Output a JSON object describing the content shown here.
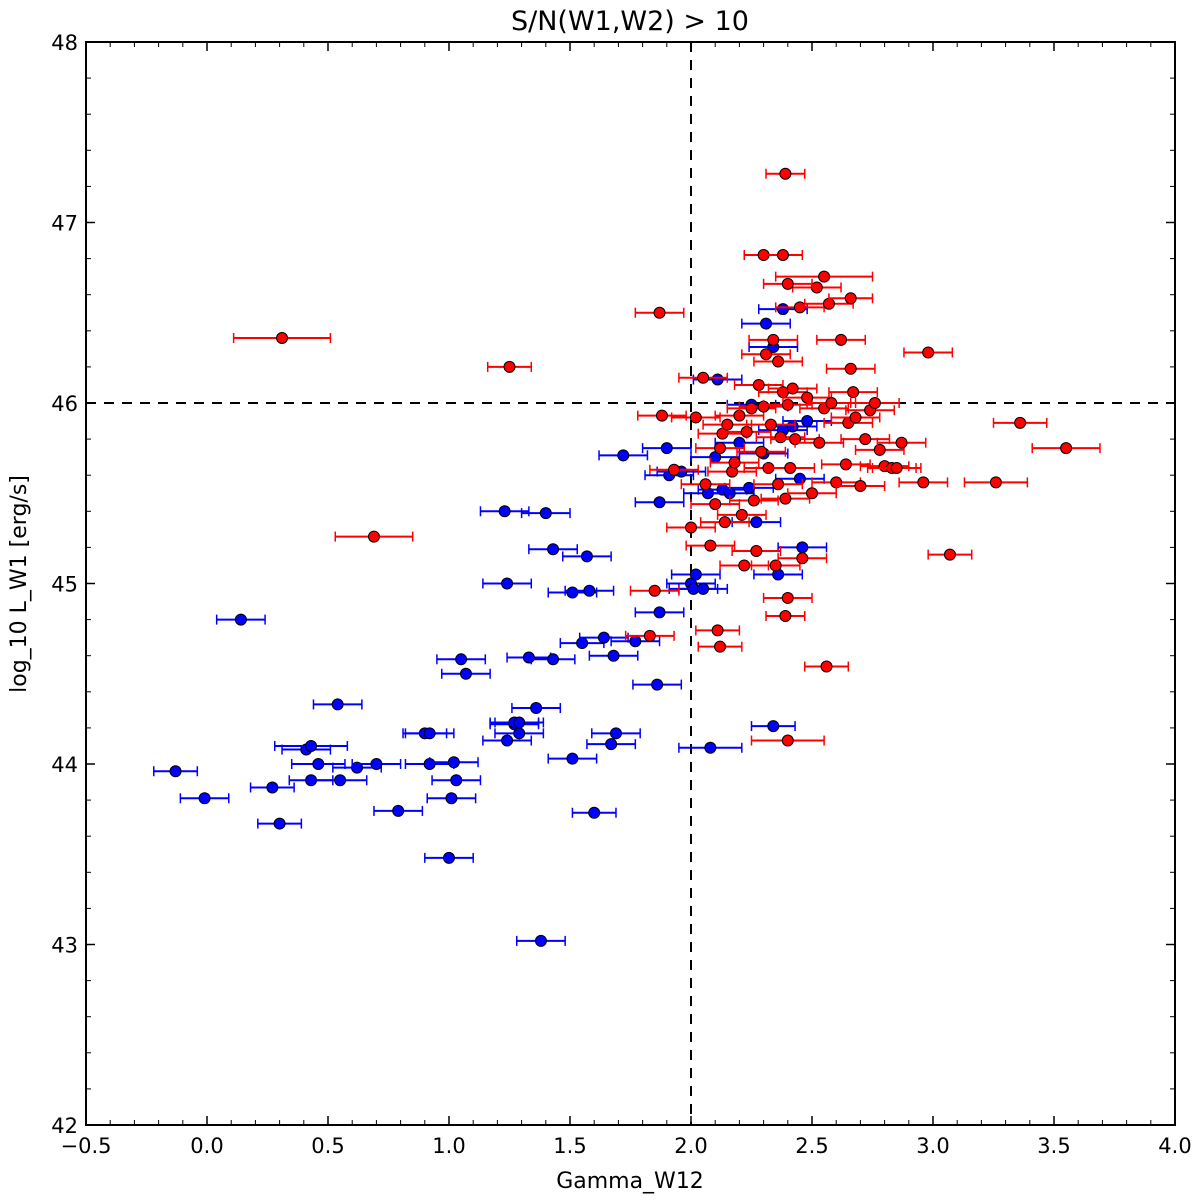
{
  "chart_data": {
    "type": "scatter",
    "title": "S/N(W1,W2) > 10",
    "xlabel": "Gamma_W12",
    "ylabel": "log_10 L_W1 [erg/s]",
    "xlim": [
      -0.5,
      4.0
    ],
    "ylim": [
      42,
      48
    ],
    "x_ticks": [
      -0.5,
      0.0,
      0.5,
      1.0,
      1.5,
      2.0,
      2.5,
      3.0,
      3.5,
      4.0
    ],
    "x_tick_labels": [
      "−0.5",
      "0.0",
      "0.5",
      "1.0",
      "1.5",
      "2.0",
      "2.5",
      "3.0",
      "3.5",
      "4.0"
    ],
    "y_ticks": [
      42,
      43,
      44,
      45,
      46,
      47,
      48
    ],
    "y_tick_labels": [
      "42",
      "43",
      "44",
      "45",
      "46",
      "47",
      "48"
    ],
    "grid": false,
    "reference_lines": [
      {
        "orientation": "vertical",
        "value": 2.0,
        "style": "dashed"
      },
      {
        "orientation": "horizontal",
        "value": 46.0,
        "style": "dashed"
      }
    ],
    "series": [
      {
        "color": "#0000ff",
        "marker_color": "#0000ff",
        "x": [
          -0.13,
          -0.01,
          0.14,
          0.27,
          0.3,
          0.41,
          0.43,
          0.43,
          0.46,
          0.54,
          0.55,
          0.62,
          0.7,
          0.79,
          0.9,
          0.92,
          0.92,
          1.0,
          1.01,
          1.02,
          1.03,
          1.05,
          1.07,
          1.23,
          1.24,
          1.24,
          1.27,
          1.27,
          1.29,
          1.29,
          1.33,
          1.36,
          1.38,
          1.4,
          1.43,
          1.43,
          1.51,
          1.51,
          1.55,
          1.57,
          1.58,
          1.6,
          1.64,
          1.67,
          1.68,
          1.69,
          1.72,
          1.77,
          1.86,
          1.87,
          1.87,
          1.9,
          1.91,
          1.96,
          2.0,
          2.01,
          2.02,
          2.05,
          2.07,
          2.08,
          2.1,
          2.11,
          2.13,
          2.16,
          2.2,
          2.24,
          2.25,
          2.27,
          2.3,
          2.31,
          2.34,
          2.34,
          2.36,
          2.38,
          2.38,
          2.42,
          2.45,
          2.46,
          2.48
        ],
        "y": [
          43.96,
          43.81,
          44.8,
          43.87,
          43.67,
          44.08,
          43.91,
          44.1,
          44.0,
          44.33,
          43.91,
          43.98,
          44.0,
          43.74,
          44.17,
          44.17,
          44.0,
          43.48,
          43.81,
          44.01,
          43.91,
          44.58,
          44.5,
          45.4,
          45.0,
          44.13,
          44.22,
          44.23,
          44.17,
          44.23,
          44.59,
          44.31,
          43.02,
          45.39,
          45.19,
          44.58,
          44.03,
          44.95,
          44.67,
          45.15,
          44.96,
          43.73,
          44.7,
          44.11,
          44.6,
          44.17,
          45.71,
          44.68,
          44.44,
          44.84,
          45.45,
          45.75,
          45.6,
          45.62,
          45.0,
          44.97,
          45.05,
          44.97,
          45.5,
          44.09,
          45.7,
          46.13,
          45.52,
          45.5,
          45.78,
          45.53,
          45.99,
          45.34,
          45.72,
          46.44,
          46.31,
          44.21,
          45.05,
          46.52,
          45.85,
          45.87,
          45.58,
          45.2,
          45.9
        ],
        "xerr": [
          0.09,
          0.1,
          0.1,
          0.09,
          0.09,
          0.1,
          0.09,
          0.15,
          0.11,
          0.1,
          0.11,
          0.1,
          0.1,
          0.1,
          0.09,
          0.1,
          0.1,
          0.1,
          0.1,
          0.1,
          0.1,
          0.1,
          0.1,
          0.1,
          0.1,
          0.1,
          0.1,
          0.1,
          0.1,
          0.1,
          0.09,
          0.1,
          0.1,
          0.1,
          0.1,
          0.09,
          0.1,
          0.1,
          0.09,
          0.1,
          0.1,
          0.09,
          0.1,
          0.1,
          0.1,
          0.1,
          0.1,
          0.1,
          0.1,
          0.1,
          0.1,
          0.1,
          0.1,
          0.1,
          0.1,
          0.1,
          0.1,
          0.1,
          0.1,
          0.13,
          0.1,
          0.1,
          0.1,
          0.1,
          0.1,
          0.1,
          0.1,
          0.1,
          0.1,
          0.1,
          0.1,
          0.09,
          0.1,
          0.1,
          0.1,
          0.1,
          0.1,
          0.1,
          0.1
        ]
      },
      {
        "color": "#ff0000",
        "marker_color": "#ff0000",
        "x": [
          0.31,
          0.69,
          1.25,
          1.83,
          1.85,
          1.87,
          1.88,
          1.93,
          2.0,
          2.02,
          2.05,
          2.06,
          2.08,
          2.1,
          2.12,
          2.13,
          2.14,
          2.15,
          2.17,
          2.18,
          2.2,
          2.21,
          2.22,
          2.23,
          2.25,
          2.26,
          2.27,
          2.28,
          2.29,
          2.3,
          2.31,
          2.32,
          2.33,
          2.34,
          2.35,
          2.36,
          2.36,
          2.37,
          2.38,
          2.39,
          2.4,
          2.4,
          2.41,
          2.42,
          2.43,
          2.45,
          2.46,
          2.48,
          2.5,
          2.52,
          2.53,
          2.55,
          2.57,
          2.58,
          2.6,
          2.62,
          2.64,
          2.65,
          2.66,
          2.67,
          2.68,
          2.7,
          2.72,
          2.74,
          2.76,
          2.78,
          2.8,
          2.83,
          2.85,
          2.87,
          2.96,
          2.98,
          3.07,
          3.26,
          3.36,
          3.55,
          2.39,
          2.3,
          2.38,
          2.55,
          2.66,
          2.4,
          2.56,
          2.11,
          2.12,
          2.39,
          2.4
        ],
        "y": [
          46.36,
          45.26,
          46.2,
          44.71,
          44.96,
          46.5,
          45.93,
          45.63,
          45.31,
          45.92,
          46.14,
          45.55,
          45.21,
          45.44,
          45.75,
          45.83,
          45.34,
          45.88,
          45.62,
          45.67,
          45.93,
          45.38,
          45.1,
          45.84,
          45.97,
          45.46,
          45.18,
          46.1,
          45.73,
          45.98,
          46.27,
          45.64,
          45.88,
          46.35,
          45.1,
          45.55,
          46.23,
          45.81,
          46.06,
          45.47,
          45.99,
          44.92,
          45.64,
          46.08,
          45.8,
          46.53,
          45.14,
          46.03,
          45.5,
          46.64,
          45.78,
          45.97,
          46.55,
          46.0,
          45.56,
          46.35,
          45.66,
          45.89,
          46.19,
          46.06,
          45.92,
          45.54,
          45.8,
          45.96,
          46.0,
          45.74,
          45.65,
          45.64,
          45.64,
          45.78,
          45.56,
          46.28,
          45.16,
          45.56,
          45.89,
          45.75,
          47.27,
          46.82,
          46.82,
          46.7,
          46.58,
          46.66,
          44.54,
          44.74,
          44.65,
          44.82,
          44.13
        ],
        "xerr": [
          0.2,
          0.16,
          0.09,
          0.1,
          0.1,
          0.1,
          0.1,
          0.1,
          0.1,
          0.1,
          0.1,
          0.1,
          0.1,
          0.1,
          0.1,
          0.1,
          0.1,
          0.1,
          0.1,
          0.1,
          0.1,
          0.1,
          0.1,
          0.1,
          0.1,
          0.1,
          0.1,
          0.1,
          0.1,
          0.1,
          0.1,
          0.1,
          0.1,
          0.1,
          0.1,
          0.1,
          0.1,
          0.1,
          0.1,
          0.1,
          0.1,
          0.1,
          0.1,
          0.1,
          0.1,
          0.1,
          0.1,
          0.1,
          0.1,
          0.1,
          0.1,
          0.1,
          0.1,
          0.1,
          0.1,
          0.1,
          0.1,
          0.1,
          0.1,
          0.1,
          0.1,
          0.1,
          0.1,
          0.1,
          0.1,
          0.1,
          0.1,
          0.1,
          0.1,
          0.1,
          0.1,
          0.1,
          0.09,
          0.13,
          0.11,
          0.14,
          0.08,
          0.08,
          0.08,
          0.2,
          0.09,
          0.1,
          0.09,
          0.09,
          0.09,
          0.08,
          0.15
        ]
      }
    ]
  }
}
